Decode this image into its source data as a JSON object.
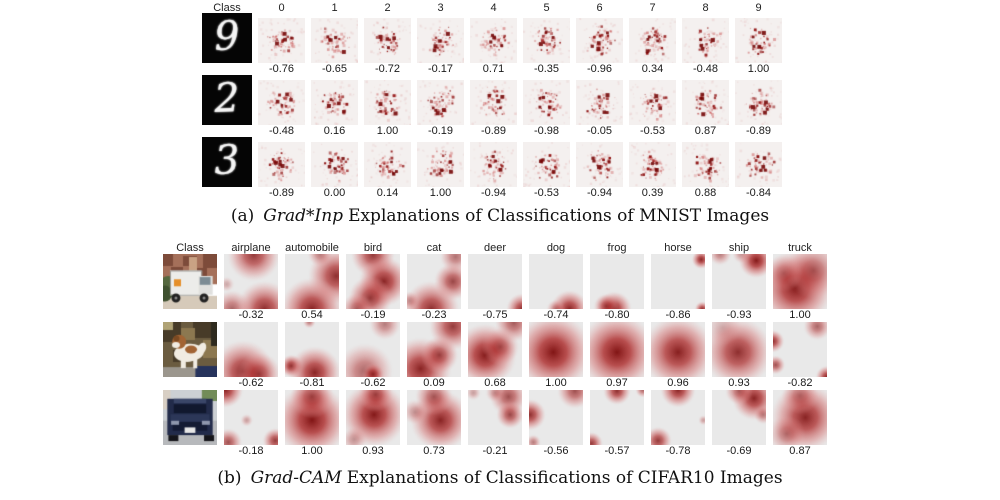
{
  "figure": {
    "colors": {
      "heatmap_red_dark": "#7e0e0e",
      "heatmap_red_mid": "#ac2828",
      "heatmap_red_light": "#d57373",
      "mnist_heatmap_bg": "#f4f0ef",
      "cifar_heatmap_bg": "#e9e9e9",
      "digit_image_bg": "#050505",
      "digit_stroke": "#f5f5f5",
      "text": "#1a1a1a"
    },
    "panel_a": {
      "caption_prefix": "(a)",
      "caption_method": "Grad*Inp",
      "caption_rest": "Explanations of Classifications of MNIST Images",
      "class_header": "Class",
      "columns": [
        "0",
        "1",
        "2",
        "3",
        "4",
        "5",
        "6",
        "7",
        "8",
        "9"
      ],
      "rows": [
        {
          "input_digit": "9",
          "scores": [
            "-0.76",
            "-0.65",
            "-0.72",
            "-0.17",
            "0.71",
            "-0.35",
            "-0.96",
            "0.34",
            "-0.48",
            "1.00"
          ]
        },
        {
          "input_digit": "2",
          "scores": [
            "-0.48",
            "0.16",
            "1.00",
            "-0.19",
            "-0.89",
            "-0.98",
            "-0.05",
            "-0.53",
            "0.87",
            "-0.89"
          ]
        },
        {
          "input_digit": "3",
          "scores": [
            "-0.89",
            "0.00",
            "0.14",
            "1.00",
            "-0.94",
            "-0.53",
            "-0.94",
            "0.39",
            "0.88",
            "-0.84"
          ]
        }
      ]
    },
    "panel_b": {
      "caption_prefix": "(b)",
      "caption_method": "Grad-CAM",
      "caption_rest": "Explanations of Classifications of CIFAR10 Images",
      "class_header": "Class",
      "columns": [
        "airplane",
        "automobile",
        "bird",
        "cat",
        "deer",
        "dog",
        "frog",
        "horse",
        "ship",
        "truck"
      ],
      "rows": [
        {
          "input_kind": "truck-photo",
          "scores": [
            "-0.32",
            "0.54",
            "-0.19",
            "-0.23",
            "-0.75",
            "-0.74",
            "-0.80",
            "-0.86",
            "-0.93",
            "1.00"
          ],
          "heatmaps": [
            [
              [
                0.55,
                0.02,
                0.42,
                0.8
              ],
              [
                0.05,
                0.55,
                0.12,
                0.3
              ],
              [
                0.15,
                1.0,
                0.3,
                0.6
              ],
              [
                0.75,
                1.0,
                0.45,
                0.85
              ]
            ],
            [
              [
                0.95,
                0.4,
                0.45,
                0.85
              ],
              [
                0.5,
                1.0,
                0.5,
                0.9
              ],
              [
                0.65,
                0.0,
                0.2,
                0.5
              ]
            ],
            [
              [
                0.5,
                0.02,
                0.35,
                0.8
              ],
              [
                0.7,
                0.5,
                0.4,
                0.9
              ],
              [
                0.45,
                0.8,
                0.35,
                0.8
              ],
              [
                0.2,
                1.0,
                0.25,
                0.6
              ]
            ],
            [
              [
                0.9,
                0.05,
                0.25,
                0.55
              ],
              [
                0.85,
                0.5,
                0.3,
                0.75
              ],
              [
                0.45,
                1.0,
                0.45,
                0.85
              ],
              [
                0.05,
                0.85,
                0.15,
                0.4
              ]
            ],
            [
              [
                1.0,
                1.0,
                0.25,
                0.85
              ]
            ],
            [
              [
                0.75,
                1.0,
                0.3,
                0.9
              ],
              [
                0.5,
                1.0,
                0.15,
                0.5
              ]
            ],
            [
              [
                0.45,
                1.0,
                0.28,
                0.9
              ],
              [
                0.3,
                0.95,
                0.2,
                0.7
              ]
            ],
            [
              [
                0.93,
                0.1,
                0.15,
                0.9
              ],
              [
                0.95,
                1.0,
                0.12,
                0.85
              ]
            ],
            [
              [
                0.15,
                0.0,
                0.18,
                0.5
              ],
              [
                0.55,
                0.0,
                0.15,
                0.4
              ],
              [
                0.82,
                0.12,
                0.28,
                0.95
              ]
            ],
            [
              [
                0.42,
                0.62,
                0.6,
                0.95
              ],
              [
                0.75,
                0.3,
                0.45,
                0.6
              ],
              [
                0.2,
                0.35,
                0.3,
                0.4
              ]
            ]
          ]
        },
        {
          "input_kind": "dog-photo",
          "scores": [
            "-0.62",
            "-0.81",
            "-0.62",
            "0.09",
            "0.68",
            "1.00",
            "0.97",
            "0.96",
            "0.93",
            "-0.82"
          ],
          "heatmaps": [
            [
              [
                0.35,
                0.9,
                0.5,
                0.85
              ],
              [
                0.65,
                0.95,
                0.35,
                0.7
              ]
            ],
            [
              [
                0.12,
                0.8,
                0.18,
                0.9
              ],
              [
                0.55,
                0.92,
                0.42,
                0.9
              ],
              [
                0.45,
                0.0,
                0.1,
                0.5
              ]
            ],
            [
              [
                0.72,
                0.04,
                0.25,
                0.5
              ],
              [
                0.35,
                0.9,
                0.45,
                0.6
              ],
              [
                0.5,
                0.95,
                0.18,
                0.85
              ]
            ],
            [
              [
                0.85,
                0.08,
                0.38,
                0.8
              ],
              [
                0.25,
                0.85,
                0.5,
                0.9
              ],
              [
                0.6,
                0.6,
                0.3,
                0.75
              ]
            ],
            [
              [
                0.85,
                0.02,
                0.3,
                0.65
              ],
              [
                0.32,
                0.6,
                0.5,
                0.95
              ],
              [
                0.6,
                0.45,
                0.3,
                0.6
              ]
            ],
            [
              [
                0.45,
                0.55,
                0.62,
                0.97
              ]
            ],
            [
              [
                0.5,
                0.55,
                0.62,
                0.97
              ]
            ],
            [
              [
                0.5,
                0.55,
                0.58,
                0.92
              ]
            ],
            [
              [
                0.48,
                0.55,
                0.55,
                0.85
              ],
              [
                0.2,
                0.1,
                0.3,
                0.25
              ]
            ],
            [
              [
                0.0,
                0.35,
                0.18,
                0.85
              ],
              [
                0.05,
                0.78,
                0.15,
                0.7
              ],
              [
                0.82,
                0.08,
                0.22,
                0.6
              ],
              [
                1.0,
                1.0,
                0.18,
                0.9
              ]
            ]
          ]
        },
        {
          "input_kind": "automobile-photo",
          "scores": [
            "-0.18",
            "1.00",
            "0.93",
            "0.73",
            "-0.21",
            "-0.56",
            "-0.57",
            "-0.78",
            "-0.69",
            "0.87"
          ],
          "heatmaps": [
            [
              [
                0.03,
                0.0,
                0.28,
                0.9
              ],
              [
                0.42,
                0.55,
                0.1,
                0.35
              ],
              [
                0.08,
                0.95,
                0.22,
                0.7
              ],
              [
                0.95,
                0.92,
                0.2,
                0.8
              ]
            ],
            [
              [
                0.5,
                0.55,
                0.58,
                0.97
              ],
              [
                0.5,
                0.12,
                0.35,
                0.7
              ]
            ],
            [
              [
                0.52,
                0.45,
                0.52,
                0.95
              ],
              [
                0.55,
                0.08,
                0.28,
                0.7
              ],
              [
                0.15,
                0.9,
                0.2,
                0.4
              ]
            ],
            [
              [
                0.62,
                0.55,
                0.48,
                0.9
              ],
              [
                0.5,
                0.12,
                0.3,
                0.65
              ],
              [
                0.15,
                0.4,
                0.2,
                0.4
              ]
            ],
            [
              [
                0.75,
                0.12,
                0.3,
                0.7
              ],
              [
                0.78,
                0.45,
                0.22,
                0.75
              ],
              [
                0.5,
                0.05,
                0.15,
                0.4
              ],
              [
                0.1,
                0.05,
                0.12,
                0.35
              ]
            ],
            [
              [
                0.02,
                0.45,
                0.25,
                0.85
              ],
              [
                0.85,
                0.02,
                0.28,
                0.7
              ],
              [
                0.08,
                0.95,
                0.12,
                0.5
              ]
            ],
            [
              [
                0.5,
                0.02,
                0.22,
                0.85
              ],
              [
                0.98,
                0.0,
                0.12,
                0.6
              ],
              [
                0.03,
                0.97,
                0.18,
                0.8
              ]
            ],
            [
              [
                0.5,
                0.0,
                0.28,
                0.9
              ],
              [
                0.13,
                0.92,
                0.22,
                0.8
              ],
              [
                0.97,
                0.55,
                0.08,
                0.35
              ]
            ],
            [
              [
                0.78,
                0.15,
                0.35,
                0.9
              ],
              [
                0.5,
                0.02,
                0.22,
                0.6
              ],
              [
                0.95,
                0.45,
                0.15,
                0.5
              ]
            ],
            [
              [
                0.6,
                0.5,
                0.55,
                0.9
              ],
              [
                0.25,
                0.8,
                0.3,
                0.5
              ],
              [
                0.5,
                0.1,
                0.3,
                0.5
              ]
            ]
          ]
        }
      ]
    }
  }
}
